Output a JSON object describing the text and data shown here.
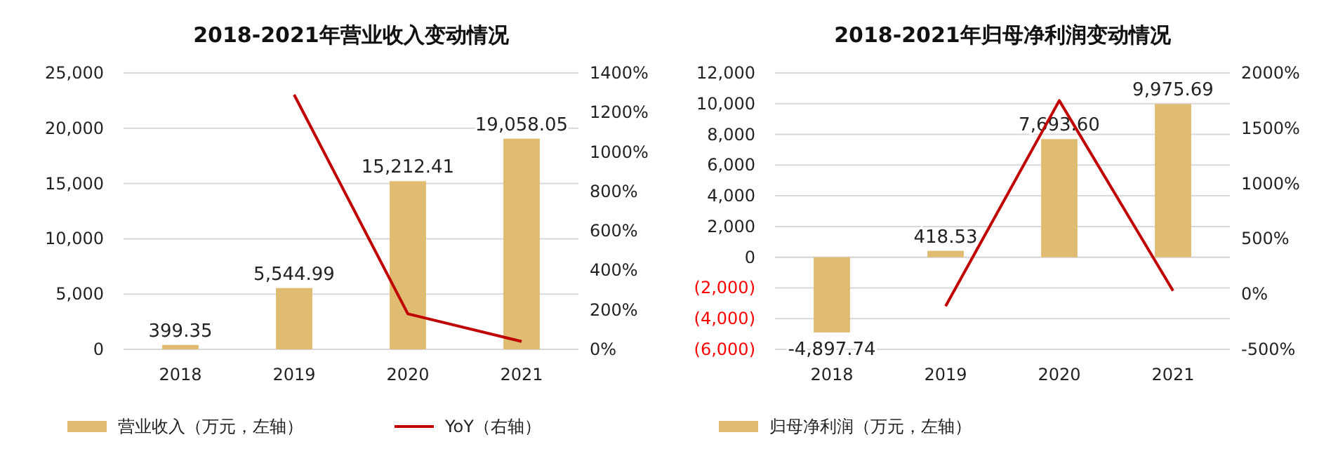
{
  "chart_data": [
    {
      "type": "bar",
      "title": "2018-2021年营业收入变动情况",
      "categories": [
        "2018",
        "2019",
        "2020",
        "2021"
      ],
      "series": [
        {
          "name": "营业收入（万元，左轴）",
          "color": "#e0bc72",
          "values": [
            399.35,
            5544.99,
            15212.41,
            19058.05
          ],
          "value_labels": [
            "399.35",
            "5,544.99",
            "15,212.41",
            "19,058.05"
          ]
        },
        {
          "name": "YoY（右轴）",
          "type": "line",
          "axis": "y2",
          "color": "#c00000",
          "values": [
            null,
            1290,
            180,
            40
          ]
        }
      ],
      "ylim": [
        0,
        25000
      ],
      "yticks": [
        {
          "value": 0,
          "label": "0"
        },
        {
          "value": 5000,
          "label": "5,000"
        },
        {
          "value": 10000,
          "label": "10,000"
        },
        {
          "value": 15000,
          "label": "15,000"
        },
        {
          "value": 20000,
          "label": "20,000"
        },
        {
          "value": 25000,
          "label": "25,000"
        }
      ],
      "y2lim": [
        0,
        1400
      ],
      "y2ticks": [
        {
          "value": 0,
          "label": "0%"
        },
        {
          "value": 200,
          "label": "200%"
        },
        {
          "value": 400,
          "label": "400%"
        },
        {
          "value": 600,
          "label": "600%"
        },
        {
          "value": 800,
          "label": "800%"
        },
        {
          "value": 1000,
          "label": "1000%"
        },
        {
          "value": 1200,
          "label": "1200%"
        },
        {
          "value": 1400,
          "label": "1400%"
        }
      ],
      "grid": "y",
      "legend": "bottom",
      "marker": "none"
    },
    {
      "type": "bar",
      "title": "2018-2021年归母净利润变动情况",
      "categories": [
        "2018",
        "2019",
        "2020",
        "2021"
      ],
      "series": [
        {
          "name": "归母净利润（万元，左轴）",
          "color": "#e0bc72",
          "values": [
            -4897.74,
            418.53,
            7693.6,
            9975.69
          ],
          "value_labels": [
            "-4,897.74",
            "418.53",
            "7,693.60",
            "9,975.69"
          ]
        },
        {
          "type": "line",
          "axis": "y2",
          "color": "#c00000",
          "values": [
            null,
            -110,
            1750,
            30
          ]
        }
      ],
      "ylim": [
        -6000,
        12000
      ],
      "yticks": [
        {
          "value": -6000,
          "label": "(6,000)"
        },
        {
          "value": -4000,
          "label": "(4,000)"
        },
        {
          "value": -2000,
          "label": "(2,000)"
        },
        {
          "value": 0,
          "label": "0"
        },
        {
          "value": 2000,
          "label": "2,000"
        },
        {
          "value": 4000,
          "label": "4,000"
        },
        {
          "value": 6000,
          "label": "6,000"
        },
        {
          "value": 8000,
          "label": "8,000"
        },
        {
          "value": 10000,
          "label": "10,000"
        },
        {
          "value": 12000,
          "label": "12,000"
        }
      ],
      "y2lim": [
        -500,
        2000
      ],
      "y2ticks": [
        {
          "value": -500,
          "label": "-500%"
        },
        {
          "value": 0,
          "label": "0%"
        },
        {
          "value": 500,
          "label": "500%"
        },
        {
          "value": 1000,
          "label": "1000%"
        },
        {
          "value": 1500,
          "label": "1500%"
        },
        {
          "value": 2000,
          "label": "2000%"
        }
      ],
      "grid": "y",
      "legend": "bottom",
      "marker": "none"
    }
  ]
}
